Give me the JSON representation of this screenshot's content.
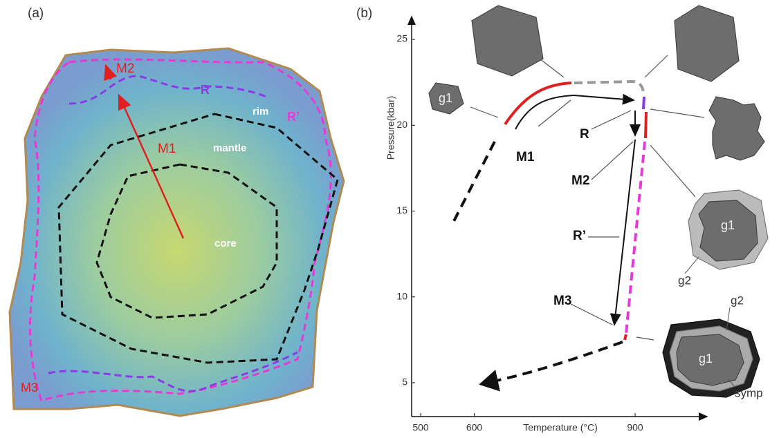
{
  "panel_a": {
    "label": "(a)",
    "labels": {
      "m2": "M2",
      "r": "R",
      "rim": "rim",
      "r_prime": "R’",
      "m1": "M1",
      "mantle": "mantle",
      "core": "core",
      "m3": "M3"
    }
  },
  "panel_b": {
    "label": "(b)",
    "x_axis": {
      "title": "Temperature (°C)",
      "ticks": [
        500,
        600,
        900
      ]
    },
    "y_axis": {
      "title": "Pressure(kbar)",
      "ticks": [
        5,
        10,
        15,
        20,
        25
      ]
    },
    "path_labels": [
      "M1",
      "R",
      "M2",
      "R’",
      "M3"
    ],
    "garnet_labels": [
      "g1",
      "g1",
      "g2",
      "g1",
      "g2",
      "symp"
    ]
  }
}
